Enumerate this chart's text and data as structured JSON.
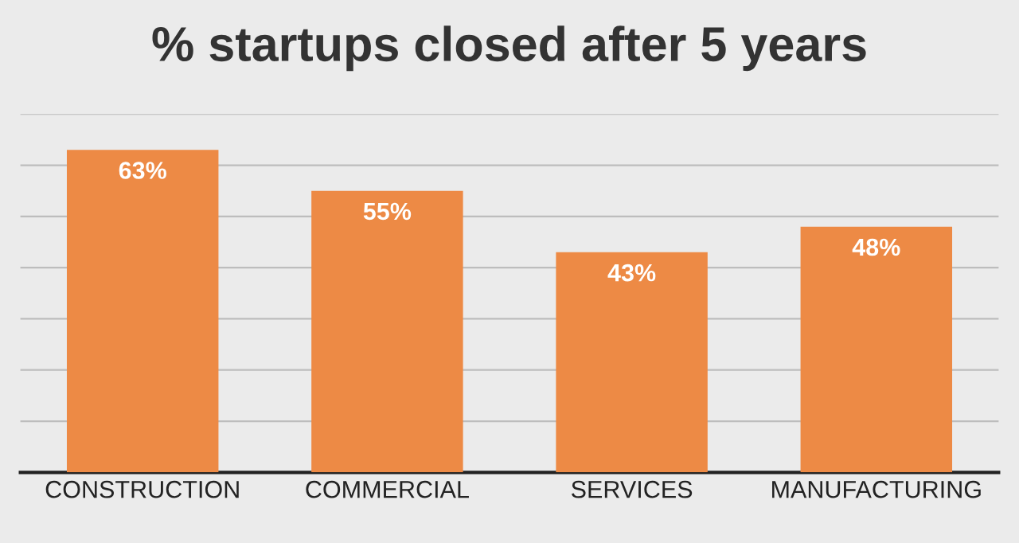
{
  "chart_data": {
    "type": "bar",
    "title": "% startups closed after 5 years",
    "categories": [
      "CONSTRUCTION",
      "COMMERCIAL",
      "SERVICES",
      "MANUFACTURING"
    ],
    "values": [
      63,
      55,
      43,
      48
    ],
    "value_labels": [
      "63%",
      "55%",
      "43%",
      "48%"
    ],
    "color": "#ed8a45",
    "ylim": [
      0,
      70
    ],
    "yticks": [
      {
        "value": 0,
        "label": null
      },
      {
        "value": 10,
        "label": null
      },
      {
        "value": 20,
        "label": null
      },
      {
        "value": 30,
        "label": null
      },
      {
        "value": 40,
        "label": null
      },
      {
        "value": 50,
        "label": null
      },
      {
        "value": 60,
        "label": null
      },
      {
        "value": 70,
        "label": null
      }
    ],
    "grid": "y"
  }
}
